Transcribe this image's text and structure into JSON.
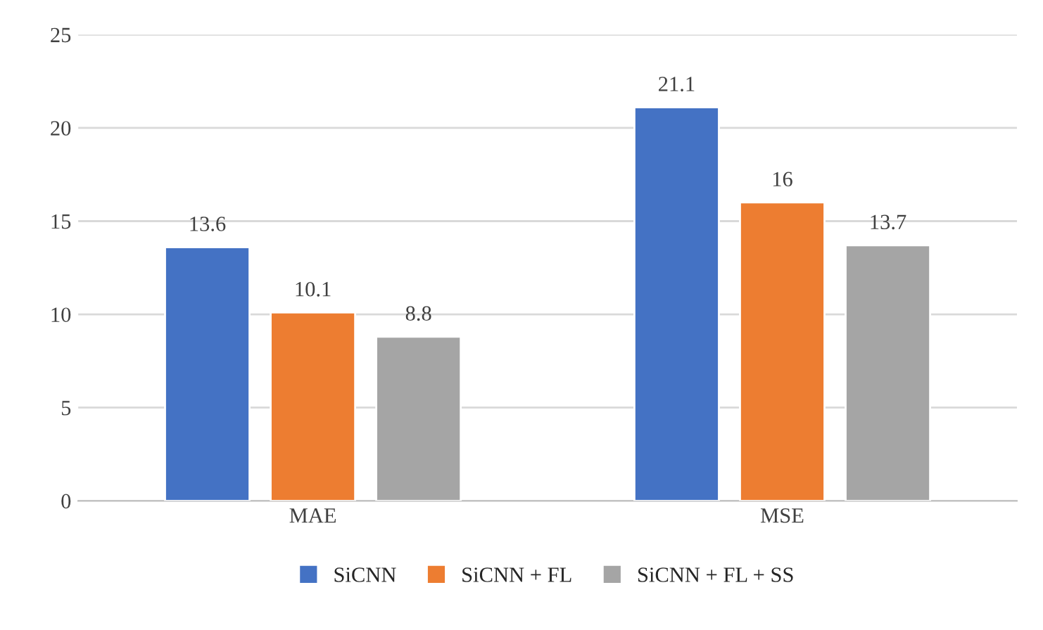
{
  "chart_data": {
    "type": "bar",
    "categories": [
      "MAE",
      "MSE"
    ],
    "series": [
      {
        "name": "SiCNN",
        "color": "#4472c4",
        "values": [
          13.6,
          21.1
        ]
      },
      {
        "name": "SiCNN + FL",
        "color": "#ed7d31",
        "values": [
          10.1,
          16
        ]
      },
      {
        "name": "SiCNN + FL + SS",
        "color": "#a5a5a5",
        "values": [
          8.8,
          13.7
        ]
      }
    ],
    "ylim": [
      0,
      25
    ],
    "yticks": [
      0,
      5,
      10,
      15,
      20,
      25
    ],
    "grid": "y",
    "legend": "bottom",
    "data_labels": true
  }
}
